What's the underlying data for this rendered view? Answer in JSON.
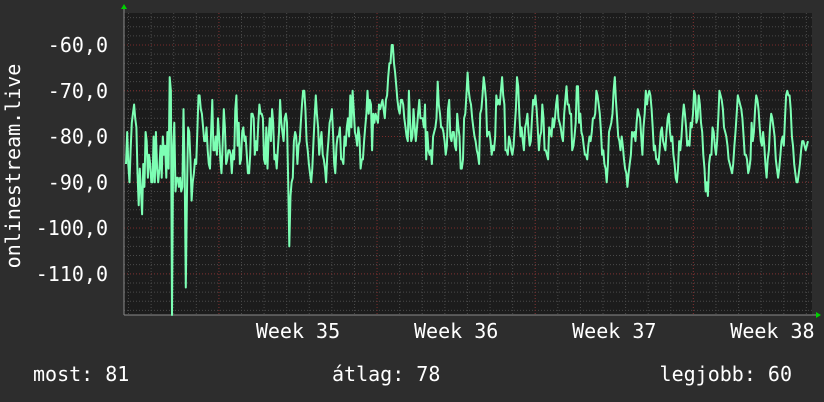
{
  "chart_data": {
    "type": "line",
    "ylabel": "onlinestream.live",
    "x_ticks": [
      "Week 35",
      "Week 36",
      "Week 37",
      "Week 38"
    ],
    "y_ticks": [
      "-60,0",
      "-70,0",
      "-80,0",
      "-90,0",
      "-100,0",
      "-110,0"
    ],
    "y_tick_values": [
      -60,
      -70,
      -80,
      -90,
      -100,
      -110
    ],
    "ylim": [
      -119,
      -53
    ],
    "x_range_weeks": [
      34.4,
      38.75
    ],
    "grid": true,
    "series": [
      {
        "color": "#7dffb4",
        "values": [
          -86,
          -79,
          -86,
          -90,
          -83,
          -77,
          -75,
          -73,
          -76,
          -78,
          -88,
          -95,
          -87,
          -92,
          -97,
          -86,
          -91,
          -79,
          -81,
          -89,
          -84,
          -86,
          -90,
          -90,
          -80,
          -90,
          -79,
          -87,
          -90,
          -87,
          -82,
          -89,
          -80,
          -84,
          -82,
          -89,
          -79,
          -87,
          -67,
          -70,
          -119,
          -82,
          -77,
          -92,
          -89,
          -89,
          -91,
          -89,
          -92,
          -91,
          -74,
          -88,
          -113,
          -92,
          -78,
          -79,
          -85,
          -94,
          -90,
          -88,
          -85,
          -86,
          -79,
          -71,
          -71,
          -74,
          -75,
          -78,
          -81,
          -81,
          -78,
          -83,
          -86,
          -87,
          -79,
          -72,
          -83,
          -83,
          -80,
          -84,
          -76,
          -80,
          -85,
          -88,
          -82,
          -74,
          -78,
          -86,
          -85,
          -83,
          -83,
          -84,
          -88,
          -83,
          -85,
          -74,
          -71,
          -82,
          -77,
          -86,
          -85,
          -79,
          -78,
          -81,
          -80,
          -84,
          -88,
          -88,
          -84,
          -75,
          -75,
          -76,
          -84,
          -81,
          -83,
          -77,
          -73,
          -75,
          -75,
          -76,
          -85,
          -86,
          -78,
          -87,
          -80,
          -76,
          -81,
          -74,
          -77,
          -85,
          -84,
          -87,
          -83,
          -79,
          -72,
          -77,
          -79,
          -81,
          -76,
          -75,
          -77,
          -90,
          -104,
          -93,
          -90,
          -89,
          -81,
          -79,
          -80,
          -86,
          -82,
          -81,
          -77,
          -73,
          -70,
          -70,
          -74,
          -81,
          -83,
          -86,
          -88,
          -90,
          -87,
          -81,
          -76,
          -71,
          -75,
          -78,
          -84,
          -81,
          -79,
          -84,
          -85,
          -87,
          -90,
          -84,
          -81,
          -77,
          -76,
          -74,
          -79,
          -86,
          -88,
          -82,
          -80,
          -80,
          -78,
          -85,
          -85,
          -86,
          -80,
          -82,
          -78,
          -76,
          -80,
          -71,
          -78,
          -70,
          -74,
          -79,
          -80,
          -82,
          -78,
          -80,
          -87,
          -85,
          -85,
          -81,
          -78,
          -75,
          -70,
          -75,
          -72,
          -73,
          -83,
          -75,
          -77,
          -75,
          -76,
          -77,
          -73,
          -74,
          -73,
          -72,
          -74,
          -76,
          -72,
          -71,
          -67,
          -64,
          -64,
          -60,
          -60,
          -64,
          -66,
          -69,
          -72,
          -74,
          -75,
          -72,
          -72,
          -73,
          -76,
          -78,
          -80,
          -81,
          -70,
          -77,
          -81,
          -80,
          -74,
          -78,
          -81,
          -78,
          -75,
          -72,
          -76,
          -76,
          -76,
          -78,
          -73,
          -85,
          -79,
          -83,
          -84,
          -83,
          -86,
          -80,
          -79,
          -78,
          -76,
          -68,
          -73,
          -75,
          -78,
          -78,
          -79,
          -81,
          -84,
          -82,
          -74,
          -72,
          -80,
          -81,
          -79,
          -79,
          -82,
          -83,
          -75,
          -78,
          -80,
          -87,
          -87,
          -85,
          -76,
          -75,
          -71,
          -66,
          -70,
          -72,
          -73,
          -76,
          -78,
          -80,
          -81,
          -83,
          -84,
          -86,
          -75,
          -74,
          -71,
          -67,
          -69,
          -72,
          -80,
          -79,
          -79,
          -81,
          -84,
          -82,
          -83,
          -80,
          -71,
          -73,
          -72,
          -73,
          -70,
          -67,
          -71,
          -73,
          -83,
          -83,
          -84,
          -80,
          -81,
          -83,
          -84,
          -82,
          -78,
          -74,
          -67,
          -69,
          -75,
          -80,
          -78,
          -81,
          -83,
          -78,
          -77,
          -75,
          -79,
          -82,
          -81,
          -76,
          -72,
          -73,
          -71,
          -74,
          -78,
          -83,
          -80,
          -79,
          -73,
          -76,
          -83,
          -83,
          -84,
          -85,
          -78,
          -79,
          -80,
          -76,
          -78,
          -76,
          -73,
          -71,
          -76,
          -77,
          -78,
          -80,
          -81,
          -75,
          -72,
          -69,
          -73,
          -73,
          -75,
          -75,
          -83,
          -82,
          -80,
          -77,
          -69,
          -69,
          -77,
          -75,
          -79,
          -80,
          -82,
          -84,
          -84,
          -85,
          -82,
          -80,
          -81,
          -79,
          -76,
          -76,
          -75,
          -70,
          -71,
          -73,
          -75,
          -79,
          -84,
          -83,
          -86,
          -87,
          -90,
          -86,
          -79,
          -78,
          -77,
          -75,
          -70,
          -67,
          -72,
          -76,
          -80,
          -81,
          -83,
          -80,
          -82,
          -85,
          -87,
          -88,
          -91,
          -88,
          -86,
          -84,
          -79,
          -80,
          -79,
          -81,
          -77,
          -74,
          -75,
          -76,
          -80,
          -84,
          -78,
          -75,
          -70,
          -73,
          -71,
          -70,
          -71,
          -74,
          -78,
          -83,
          -82,
          -85,
          -85,
          -86,
          -83,
          -79,
          -78,
          -81,
          -82,
          -83,
          -79,
          -76,
          -75,
          -79,
          -81,
          -80,
          -84,
          -86,
          -89,
          -90,
          -87,
          -81,
          -83,
          -80,
          -76,
          -73,
          -75,
          -78,
          -82,
          -81,
          -82,
          -77,
          -78,
          -75,
          -70,
          -71,
          -77,
          -76,
          -71,
          -73,
          -77,
          -79,
          -84,
          -87,
          -92,
          -90,
          -93,
          -86,
          -84,
          -84,
          -78,
          -79,
          -82,
          -84,
          -81,
          -76,
          -70,
          -71,
          -72,
          -74,
          -78,
          -79,
          -80,
          -82,
          -85,
          -86,
          -87,
          -88,
          -86,
          -82,
          -79,
          -75,
          -71,
          -72,
          -73,
          -74,
          -76,
          -80,
          -84,
          -84,
          -85,
          -88,
          -87,
          -85,
          -77,
          -81,
          -79,
          -74,
          -71,
          -72,
          -74,
          -78,
          -81,
          -82,
          -79,
          -82,
          -86,
          -89,
          -85,
          -83,
          -78,
          -75,
          -76,
          -78,
          -80,
          -85,
          -87,
          -89,
          -87,
          -84,
          -81,
          -80,
          -82,
          -76,
          -71,
          -70,
          -71,
          -71,
          -74,
          -80,
          -82,
          -86,
          -88,
          -90,
          -90,
          -88,
          -86,
          -83,
          -81,
          -81,
          -82,
          -83,
          -82,
          -81
        ]
      }
    ]
  },
  "stats": {
    "current": "most: 81",
    "average": "átlag: 78",
    "best": "legjobb: 60"
  },
  "colors": {
    "background": "#2d2d2d",
    "plot_background": "#1c1c1c",
    "grid_major": "#7a2a2a",
    "grid_minor": "#4a4a4a",
    "line": "#7dffb4",
    "axis_arrow": "#00d000",
    "text": "#ffffff"
  }
}
